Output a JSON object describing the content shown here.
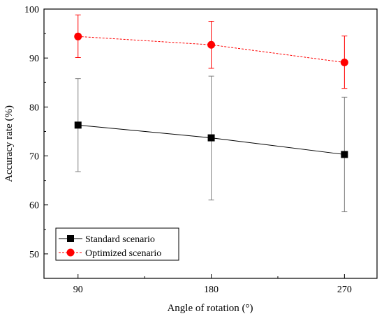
{
  "chart_data": {
    "type": "line",
    "xlabel": "Angle of rotation (°)",
    "ylabel": "Accuracy rate (%)",
    "x": [
      90,
      180,
      270
    ],
    "x_tick_labels": [
      "90",
      "180",
      "270"
    ],
    "xlim": [
      67,
      292
    ],
    "ylim": [
      45,
      100
    ],
    "y_ticks": [
      50,
      60,
      70,
      80,
      90,
      100
    ],
    "y_tick_labels": [
      "50",
      "60",
      "70",
      "80",
      "90",
      "100"
    ],
    "grid": false,
    "legend_position": "bottom-left",
    "series": [
      {
        "name": "Standard scenario",
        "color": "#000000",
        "marker": "square",
        "line_style": "solid",
        "values": [
          76.3,
          73.7,
          70.3
        ],
        "error_low": [
          66.8,
          61.0,
          58.6
        ],
        "error_high": [
          85.8,
          86.3,
          82.0
        ]
      },
      {
        "name": "Optimized scenario",
        "color": "#ff0000",
        "marker": "circle",
        "line_style": "dashed",
        "values": [
          94.4,
          92.7,
          89.1
        ],
        "error_low": [
          90.1,
          87.9,
          83.8
        ],
        "error_high": [
          98.8,
          97.5,
          94.5
        ]
      }
    ]
  }
}
